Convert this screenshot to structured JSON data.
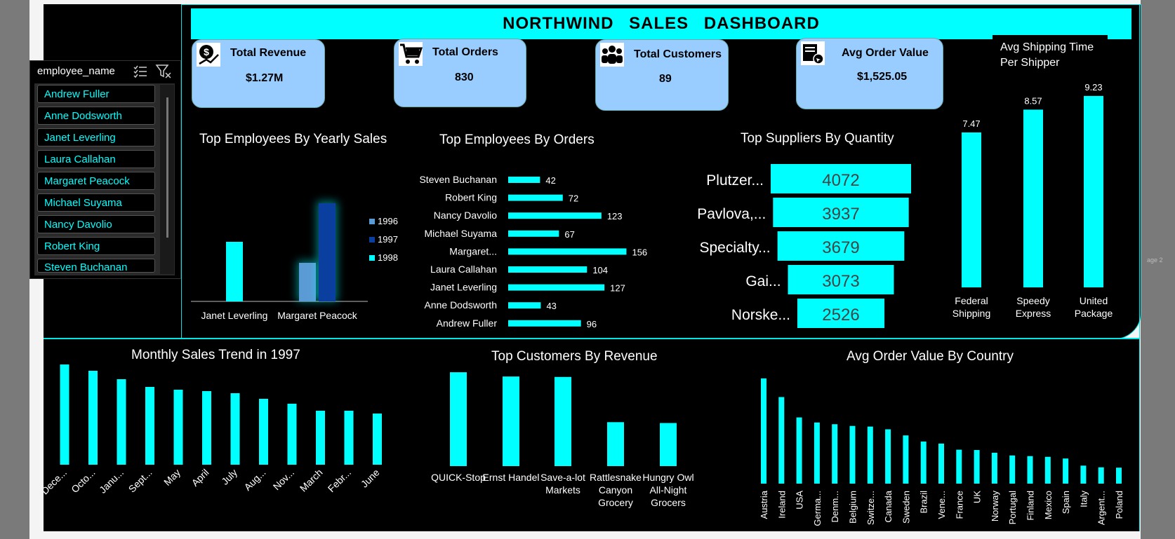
{
  "dashboard": {
    "title": "NORTHWIND  SALES  DASHBOARD",
    "page_tag": "age 2"
  },
  "kpis": [
    {
      "label": "Total Revenue",
      "value": "$1.27M",
      "icon": "revenue-icon"
    },
    {
      "label": "Total Orders",
      "value": "830",
      "icon": "cart-icon"
    },
    {
      "label": "Total Customers",
      "value": "89",
      "icon": "customers-icon"
    },
    {
      "label": "Avg Order Value",
      "value": "$1,525.05",
      "icon": "order-value-icon"
    }
  ],
  "slicer": {
    "header": "employee_name",
    "items": [
      "Andrew Fuller",
      "Anne Dodsworth",
      "Janet Leverling",
      "Laura Callahan",
      "Margaret Peacock",
      "Michael Suyama",
      "Nancy Davolio",
      "Robert King",
      "Steven Buchanan"
    ]
  },
  "colors": {
    "accent": "#00ffff",
    "y1996": "#5b9bd5",
    "y1997": "#0a3fa0",
    "y1998": "#00ffff",
    "kpi_bg": "#99ccff"
  },
  "chart_data": [
    {
      "type": "bar",
      "title": "Top Employees By Yearly Sales",
      "categories": [
        "Janet Leverling",
        "Margaret Peacock"
      ],
      "series": [
        {
          "name": "1996",
          "values": [
            0,
            55
          ]
        },
        {
          "name": "1997",
          "values": [
            0,
            140
          ]
        },
        {
          "name": "1998",
          "values": [
            85,
            0
          ]
        }
      ],
      "legend": "right"
    },
    {
      "type": "bar",
      "orientation": "horizontal",
      "title": "Top Employees By Orders",
      "categories": [
        "Steven Buchanan",
        "Robert King",
        "Nancy Davolio",
        "Michael Suyama",
        "Margaret...",
        "Laura Callahan",
        "Janet Leverling",
        "Anne Dodsworth",
        "Andrew Fuller"
      ],
      "values": [
        42,
        72,
        123,
        67,
        156,
        104,
        127,
        43,
        96
      ]
    },
    {
      "type": "bar",
      "orientation": "funnel",
      "title": "Top Suppliers By Quantity",
      "categories": [
        "Plutzer...",
        "Pavlova,...",
        "Specialty...",
        "Gai...",
        "Norske..."
      ],
      "values": [
        4072,
        3937,
        3679,
        3073,
        2526
      ]
    },
    {
      "type": "bar",
      "title": "Avg Shipping Time Per Shipper",
      "categories": [
        [
          "Federal",
          "Shipping"
        ],
        [
          "Speedy",
          "Express"
        ],
        [
          "United",
          "Package"
        ]
      ],
      "values": [
        7.47,
        8.57,
        9.23
      ],
      "ylim": [
        0,
        9.8
      ]
    },
    {
      "type": "bar",
      "title": "Monthly Sales Trend in 1997",
      "categories": [
        "Dece...",
        "Octo...",
        "Janu...",
        "Sept...",
        "May",
        "April",
        "July",
        "Aug...",
        "Nov...",
        "March",
        "Febr...",
        "June"
      ],
      "values": [
        71500,
        67000,
        61000,
        55500,
        53500,
        52500,
        51000,
        47000,
        43500,
        38500,
        38500,
        36500
      ],
      "ylim": [
        0,
        75000
      ]
    },
    {
      "type": "bar",
      "title": "Top Customers By Revenue",
      "categories": [
        [
          "QUICK-Stop"
        ],
        [
          "Ernst Handel"
        ],
        [
          "Save-a-lot",
          "Markets"
        ],
        [
          "Rattlesnake",
          "Canyon",
          "Grocery"
        ],
        [
          "Hungry Owl",
          "All-Night",
          "Grocers"
        ]
      ],
      "values": [
        110000,
        105000,
        104500,
        51500,
        50500
      ],
      "ylim": [
        0,
        115000
      ]
    },
    {
      "type": "bar",
      "title": "Avg Order Value By Country",
      "categories": [
        "Austria",
        "Ireland",
        "USA",
        "Germa...",
        "Denm...",
        "Belgium",
        "Switze...",
        "Canada",
        "Sweden",
        "Brazil",
        "Vene...",
        "France",
        "UK",
        "Norway",
        "Portugal",
        "Finland",
        "Mexico",
        "Spain",
        "Italy",
        "Argent...",
        "Poland"
      ],
      "values": [
        3100,
        2550,
        1950,
        1800,
        1750,
        1700,
        1680,
        1600,
        1420,
        1240,
        1180,
        1000,
        990,
        910,
        830,
        810,
        790,
        740,
        530,
        480,
        470
      ],
      "ylim": [
        0,
        3200
      ]
    }
  ]
}
